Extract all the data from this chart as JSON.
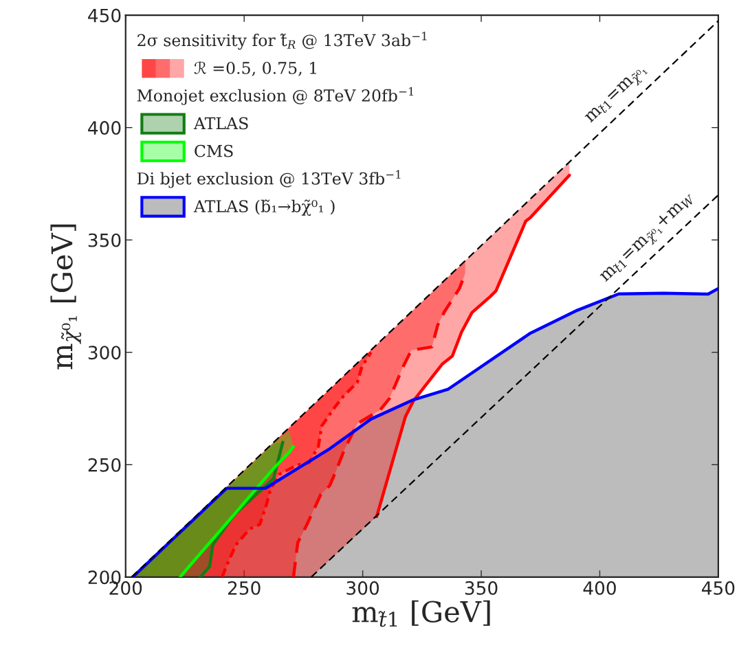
{
  "chart_data": {
    "type": "line",
    "xlabel": "m$_{t̃1}$ [GeV]",
    "ylabel": "m$_{χ̃⁰₁}$ [GeV]",
    "xlim": [
      200,
      450
    ],
    "ylim": [
      200,
      450
    ],
    "xticks": [
      200,
      250,
      300,
      350,
      400,
      450
    ],
    "yticks": [
      200,
      250,
      300,
      350,
      400,
      450
    ],
    "grid": false,
    "legend": "top left",
    "annotations": [
      "2σ sensitivity for t̃$_{R}$ @ 13TeV 3ab$^{−1}$",
      "Monojet exclusion @ 8TeV 20fb$^{−1}$",
      "Di bjet exclusion @ 13TeV 3fb$^{−1}$",
      {
        "text": "m$_{t̃1}$=m$_{χ̃⁰₁}$",
        "x": 412,
        "y": 409.5
      },
      {
        "text": "m$_{t̃1}$=m$_{χ̃⁰₁}$+m$_{W}$",
        "x": 425,
        "y": 345.4
      }
    ],
    "series": [
      {
        "color": "#ff0000",
        "name": "ℛ =0.5, 0.75, 1",
        "line_style": "solid",
        "x": [
          202.5,
          278.3,
          305.9,
          318,
          321.4,
          333.5,
          337.8,
          341.7,
          346.1,
          353.8,
          356.2,
          368.8,
          370.7,
          387.2
        ],
        "values": [
          null,
          null,
          226.9,
          271.3,
          278.4,
          294.7,
          298.3,
          309,
          317.7,
          324.8,
          327.3,
          358.4,
          359.9,
          378.8
        ],
        "lower": [
          200,
          200,
          226.9,
          271.3,
          278.4,
          294.7,
          298.3,
          309,
          317.7,
          324.8,
          327.3,
          358.4,
          359.9,
          378.8
        ],
        "upper": [
          200,
          275.8,
          303.4,
          315.5,
          318.9,
          331,
          335.3,
          339.2,
          343.6,
          351.3,
          353.7,
          366.3,
          368.2,
          384.7
        ]
      },
      {
        "color": "#ff0000",
        "line_style": "dashed",
        "x": [
          202.5,
          270.8,
          272.6,
          276.5,
          282.3,
          286.1,
          288.6,
          292.4,
          297.7,
          307.4,
          311.3,
          317.1,
          320.5,
          329.2,
          331.6,
          334.5,
          340.8,
          343.2
        ],
        "values": [
          null,
          200,
          215.3,
          223.4,
          236.7,
          240.7,
          246.9,
          257,
          268.2,
          274.4,
          279.5,
          293.7,
          300.9,
          302.4,
          312,
          318.1,
          328.4,
          335
        ],
        "lower": [
          200,
          200,
          215.3,
          223.4,
          236.7,
          240.7,
          246.9,
          257,
          268.2,
          274.4,
          279.5,
          293.7,
          300.9,
          302.4,
          312,
          318.1,
          328.4,
          335
        ],
        "upper": [
          200,
          268.3,
          270.1,
          274,
          279.8,
          283.6,
          286.1,
          289.9,
          295.2,
          304.9,
          308.8,
          314.6,
          318,
          326.7,
          329.1,
          332,
          338.3,
          340.7
        ]
      },
      {
        "color": "#ff0000",
        "line_style": "dotted",
        "x": [
          202.5,
          240.7,
          242.6,
          246.5,
          252.3,
          256.6,
          259.5,
          261,
          264.9,
          272.6,
          277.4,
          281.3,
          282.7,
          288.1,
          291.9,
          297.7,
          299.7,
          303.5
        ],
        "values": [
          null,
          200,
          205.1,
          214.3,
          221.4,
          223.4,
          232.6,
          238.7,
          245.8,
          249.9,
          250.9,
          258.1,
          267.2,
          275.4,
          280.5,
          286.6,
          293.7,
          300
        ],
        "lower": [
          200,
          200,
          205.1,
          214.3,
          221.4,
          223.4,
          232.6,
          238.7,
          245.8,
          249.9,
          250.9,
          258.1,
          267.2,
          275.4,
          280.5,
          286.6,
          293.7,
          300
        ],
        "upper": [
          200,
          238.2,
          240.1,
          244,
          249.8,
          254.1,
          257,
          258.5,
          262.4,
          270.1,
          274.9,
          278.8,
          280.2,
          285.6,
          289.4,
          295.2,
          297.2,
          301
        ]
      },
      {
        "color": "#137d13",
        "name": "ATLAS",
        "line_style": "solid",
        "x": [
          204,
          231.5,
          235.4,
          236.8,
          246,
          262.4,
          266.3
        ],
        "values": [
          null,
          200,
          204.6,
          214.4,
          228,
          243.8,
          260
        ],
        "lower": [
          200,
          200,
          204.6,
          214.4,
          228,
          243.8,
          260
        ],
        "upper": [
          200,
          228,
          232,
          233.3,
          242.5,
          259,
          260
        ]
      },
      {
        "color": "#00ff00",
        "name": "CMS",
        "line_style": "solid",
        "x": [
          202.5,
          223,
          227,
          245.5,
          263,
          269,
          270.7
        ],
        "values": [
          null,
          200,
          205,
          227.5,
          249,
          255.5,
          258
        ],
        "lower": [
          200,
          200,
          205,
          227.5,
          249,
          255.5,
          258
        ],
        "upper": [
          200,
          220.5,
          224.5,
          243,
          260.5,
          265,
          258
        ]
      },
      {
        "type": "area",
        "color": "#0000ff",
        "name": "ATLAS (b̃₁→bχ̃⁰₁ )",
        "line_style": "solid",
        "x": [
          203,
          242.6,
          259,
          286.1,
          303.5,
          321.4,
          335.9,
          370.7,
          390.5,
          408,
          427,
          445.7,
          450
        ],
        "values": [
          200,
          239.5,
          239.5,
          257.1,
          270.3,
          278.9,
          283.5,
          308.5,
          318.7,
          326,
          326.3,
          325.9,
          328.4
        ]
      },
      {
        "color": "#000000",
        "line_style": "dashed",
        "x": [
          202.5,
          450
        ],
        "values": [
          200,
          447.5
        ]
      },
      {
        "color": "#000000",
        "line_style": "dashed",
        "x": [
          278.3,
          450
        ],
        "values": [
          200,
          370
        ]
      }
    ]
  }
}
